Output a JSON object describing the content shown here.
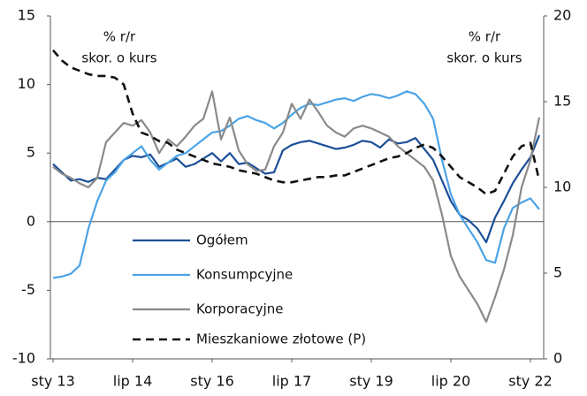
{
  "chart_data": {
    "type": "line",
    "ylabel": [
      "% r/r",
      "skor. o kurs"
    ],
    "y2label": [
      "% r/r",
      "skor. o kurs"
    ],
    "categories": [
      "sty 13",
      null,
      null,
      null,
      null,
      null,
      null,
      null,
      null,
      "lip 14",
      null,
      null,
      null,
      null,
      null,
      null,
      null,
      null,
      "sty 16",
      null,
      null,
      null,
      null,
      null,
      null,
      null,
      null,
      "lip 17",
      null,
      null,
      null,
      null,
      null,
      null,
      null,
      null,
      "sty 19",
      null,
      null,
      null,
      null,
      null,
      null,
      null,
      null,
      "lip 20",
      null,
      null,
      null,
      null,
      null,
      null,
      null,
      null,
      "sty 22",
      null
    ],
    "ylim": [
      -10,
      15
    ],
    "yticks": [
      -10,
      -5,
      0,
      5,
      10,
      15
    ],
    "y2lim": [
      0,
      20
    ],
    "y2ticks": [
      0,
      5,
      10,
      15,
      20
    ],
    "legend": "lower left",
    "series": [
      {
        "name": "Ogółem",
        "color": "#1b4f98",
        "values": [
          4.2,
          3.6,
          3.0,
          3.1,
          2.9,
          3.2,
          3.1,
          3.8,
          4.5,
          4.8,
          4.7,
          4.9,
          4.0,
          4.3,
          4.6,
          4.0,
          4.2,
          4.6,
          5.0,
          4.4,
          5.0,
          4.2,
          4.3,
          3.9,
          3.5,
          3.6,
          5.2,
          5.6,
          5.8,
          5.9,
          5.7,
          5.5,
          5.3,
          5.4,
          5.6,
          5.9,
          5.8,
          5.4,
          6.0,
          5.7,
          5.8,
          6.1,
          5.3,
          4.5,
          3.0,
          1.5,
          0.5,
          0.1,
          -0.5,
          -1.5,
          0.3,
          1.5,
          2.8,
          3.8,
          4.7,
          6.3
        ]
      },
      {
        "name": "Konsumpcyjne",
        "color": "#4ba3e6",
        "values": [
          -4.1,
          -4.0,
          -3.8,
          -3.2,
          -0.5,
          1.5,
          3.0,
          3.6,
          4.5,
          5.0,
          5.5,
          4.5,
          3.8,
          4.3,
          4.8,
          5.0,
          5.5,
          6.0,
          6.5,
          6.6,
          7.0,
          7.5,
          7.7,
          7.4,
          7.2,
          6.8,
          7.2,
          7.8,
          8.3,
          8.6,
          8.5,
          8.7,
          8.9,
          9.0,
          8.8,
          9.1,
          9.3,
          9.2,
          9.0,
          9.2,
          9.5,
          9.3,
          8.6,
          7.5,
          4.5,
          2.0,
          0.5,
          -0.5,
          -1.5,
          -2.8,
          -3.0,
          -0.5,
          1.0,
          1.4,
          1.7,
          0.9
        ]
      },
      {
        "name": "Korporacyjne",
        "color": "#8a8a8a",
        "values": [
          4.0,
          3.5,
          3.2,
          2.8,
          2.5,
          3.2,
          5.8,
          6.5,
          7.2,
          7.0,
          7.4,
          6.5,
          5.0,
          6.0,
          5.5,
          6.2,
          7.0,
          7.5,
          9.5,
          6.0,
          7.6,
          5.2,
          4.2,
          3.7,
          3.8,
          5.5,
          6.5,
          8.6,
          7.5,
          8.9,
          8.0,
          7.0,
          6.5,
          6.2,
          6.8,
          7.0,
          6.8,
          6.5,
          6.2,
          5.5,
          5.0,
          4.5,
          4.0,
          3.0,
          0.5,
          -2.5,
          -4.0,
          -5.0,
          -6.0,
          -7.3,
          -5.5,
          -3.5,
          -1.0,
          2.5,
          4.5,
          7.6
        ]
      },
      {
        "name": "Mieszkaniowe złotowe (P)",
        "color": "#111111",
        "dash": true,
        "axis": "y2",
        "values": [
          18.0,
          17.4,
          17.0,
          16.8,
          16.6,
          16.5,
          16.5,
          16.4,
          16.0,
          14.3,
          13.2,
          13.0,
          12.7,
          12.6,
          12.2,
          12.0,
          11.8,
          11.6,
          11.4,
          11.3,
          11.2,
          11.0,
          10.9,
          10.8,
          10.6,
          10.4,
          10.3,
          10.3,
          10.4,
          10.5,
          10.6,
          10.6,
          10.7,
          10.7,
          10.9,
          11.1,
          11.3,
          11.5,
          11.7,
          11.8,
          12.0,
          12.3,
          12.5,
          12.3,
          11.8,
          11.2,
          10.6,
          10.3,
          10.0,
          9.6,
          9.8,
          10.8,
          11.8,
          12.4,
          12.6,
          10.4
        ]
      }
    ]
  }
}
